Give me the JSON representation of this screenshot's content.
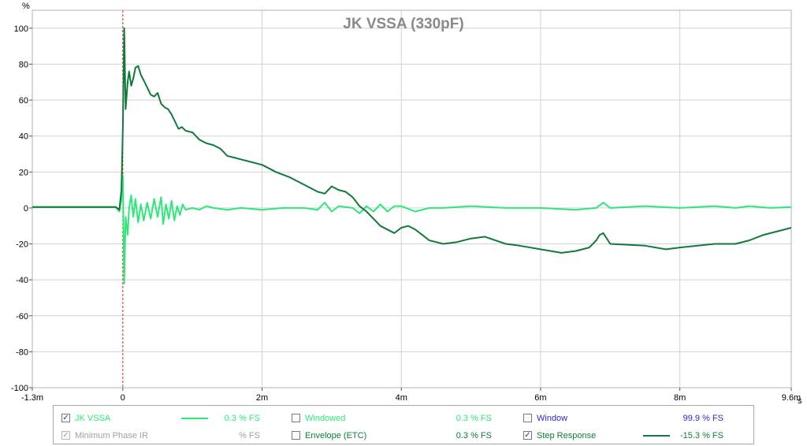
{
  "chart_data": {
    "type": "line",
    "title": "JK VSSA (330pF)",
    "ylabel": "%",
    "xlabel": "s",
    "xlim": [
      -1.3,
      9.6
    ],
    "ylim": [
      -100,
      110
    ],
    "x_ticks": [
      -1.3,
      0,
      2,
      4,
      6,
      8,
      9.6
    ],
    "x_tick_labels": [
      "-1.3m",
      "0",
      "2m",
      "4m",
      "6m",
      "8m",
      "9.6m"
    ],
    "y_ticks": [
      -100,
      -80,
      -60,
      -40,
      -20,
      0,
      20,
      40,
      60,
      80,
      100
    ],
    "y_tick_labels": [
      "-100",
      "-80",
      "-60",
      "-40",
      "-20",
      "0",
      "20",
      "40",
      "60",
      "80",
      "100"
    ],
    "grid": true,
    "marker_x": 0,
    "series": [
      {
        "name": "JK VSSA",
        "color": "#2ee87a",
        "x": [
          -1.3,
          -0.1,
          -0.05,
          -0.02,
          0,
          0.02,
          0.04,
          0.07,
          0.09,
          0.12,
          0.15,
          0.18,
          0.22,
          0.26,
          0.3,
          0.35,
          0.4,
          0.45,
          0.5,
          0.55,
          0.58,
          0.62,
          0.66,
          0.7,
          0.74,
          0.78,
          0.82,
          0.86,
          0.9,
          1.0,
          1.1,
          1.2,
          1.3,
          1.5,
          1.7,
          2.0,
          2.3,
          2.6,
          2.8,
          2.9,
          3.0,
          3.1,
          3.3,
          3.4,
          3.5,
          3.6,
          3.7,
          3.8,
          3.9,
          4.0,
          4.2,
          4.4,
          4.6,
          5.0,
          5.5,
          6.0,
          6.5,
          6.8,
          6.9,
          7.0,
          7.5,
          8.0,
          8.5,
          8.8,
          9.0,
          9.3,
          9.6
        ],
        "y": [
          0.5,
          0.5,
          -2,
          5,
          18,
          -42,
          -5,
          -15,
          0,
          7,
          -5,
          5,
          -8,
          2,
          -7,
          3,
          -6,
          5,
          -5,
          6,
          -9,
          2,
          -6,
          4,
          -7,
          1,
          -4,
          2,
          -1,
          0,
          -1,
          1,
          0,
          -1,
          0,
          -1,
          0,
          0,
          -1,
          3,
          -2,
          1,
          0,
          -3,
          1,
          -2,
          2,
          -2,
          1,
          1,
          -2,
          0,
          0,
          1,
          0,
          0,
          -1,
          0,
          3,
          0,
          1,
          0,
          1,
          0,
          1,
          0,
          0.5
        ]
      },
      {
        "name": "Step Response",
        "color": "#117a3a",
        "x": [
          -1.3,
          -0.1,
          -0.05,
          -0.02,
          0,
          0.02,
          0.04,
          0.07,
          0.09,
          0.12,
          0.15,
          0.18,
          0.22,
          0.26,
          0.3,
          0.35,
          0.4,
          0.45,
          0.5,
          0.55,
          0.6,
          0.65,
          0.7,
          0.75,
          0.8,
          0.85,
          0.9,
          1.0,
          1.1,
          1.2,
          1.3,
          1.4,
          1.5,
          1.6,
          1.7,
          1.8,
          2.0,
          2.2,
          2.4,
          2.6,
          2.8,
          2.9,
          3.0,
          3.1,
          3.2,
          3.3,
          3.4,
          3.5,
          3.6,
          3.7,
          3.8,
          3.9,
          4.0,
          4.1,
          4.2,
          4.3,
          4.4,
          4.5,
          4.6,
          4.8,
          5.0,
          5.2,
          5.5,
          5.7,
          6.0,
          6.3,
          6.5,
          6.7,
          6.8,
          6.85,
          6.9,
          7.0,
          7.5,
          7.8,
          8.0,
          8.5,
          8.8,
          9.0,
          9.2,
          9.4,
          9.6
        ],
        "y": [
          0.5,
          0.5,
          -1,
          10,
          45,
          100,
          55,
          70,
          76,
          68,
          72,
          78,
          79,
          74,
          71,
          67,
          63,
          62,
          64,
          58,
          56,
          55,
          52,
          48,
          44,
          45,
          43,
          42,
          38,
          36,
          35,
          33,
          29,
          28,
          27,
          26,
          24,
          20,
          17,
          13,
          9,
          8,
          12,
          10,
          9,
          6,
          1,
          -2,
          -6,
          -10,
          -12,
          -14,
          -11,
          -10,
          -12,
          -15,
          -18,
          -19,
          -20,
          -19,
          -17,
          -16,
          -20,
          -21,
          -23,
          -25,
          -24,
          -22,
          -18,
          -15,
          -14,
          -20,
          -21,
          -23,
          -22,
          -20,
          -20,
          -18,
          -15,
          -13,
          -11
        ]
      }
    ],
    "legend_placement": "bottom"
  },
  "legend": {
    "items": [
      {
        "id": "jk-vssa",
        "label": "JK VSSA",
        "checked": true,
        "disabled": false,
        "label_color": "#2ee87a",
        "swatch_color": "#2ee87a",
        "value": "0.3 % FS",
        "value_color": "#2ee87a"
      },
      {
        "id": "min-phase-ir",
        "label": "Minimum Phase IR",
        "checked": true,
        "disabled": true,
        "label_color": "#a0a0a0",
        "swatch_color": "",
        "value": "% FS",
        "value_color": "#a0a0a0"
      },
      {
        "id": "windowed",
        "label": "Windowed",
        "checked": false,
        "disabled": false,
        "label_color": "#2ee87a",
        "swatch_color": "",
        "value": "0.3 % FS",
        "value_color": "#2ee87a"
      },
      {
        "id": "envelope",
        "label": "Envelope (ETC)",
        "checked": false,
        "disabled": false,
        "label_color": "#117a3a",
        "swatch_color": "",
        "value": "0.3 % FS",
        "value_color": "#117a3a"
      },
      {
        "id": "window",
        "label": "Window",
        "checked": false,
        "disabled": false,
        "label_color": "#2a2ac8",
        "swatch_color": "",
        "value": "99.9 % FS",
        "value_color": "#2a2ac8"
      },
      {
        "id": "step-response",
        "label": "Step Response",
        "checked": true,
        "disabled": false,
        "label_color": "#117a3a",
        "swatch_color": "#117a3a",
        "value": "-15.3 % FS",
        "value_color": "#117a3a"
      }
    ]
  }
}
